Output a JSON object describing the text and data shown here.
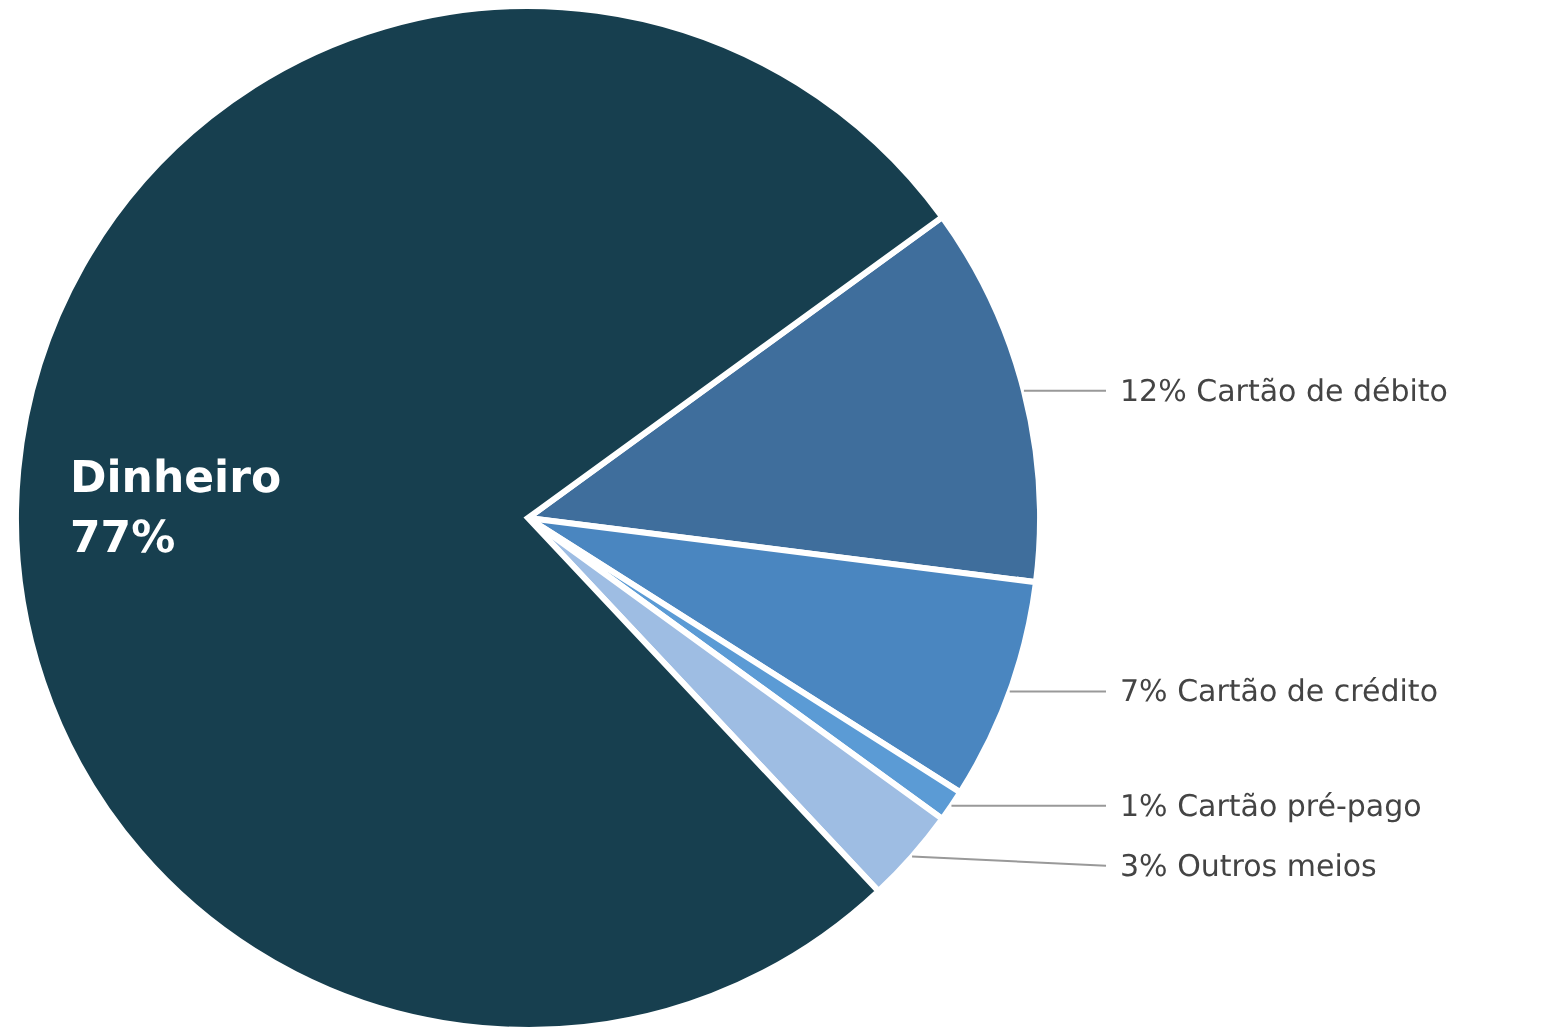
{
  "chart_data": {
    "type": "pie",
    "categories": [
      "Cartão de débito",
      "Cartão de crédito",
      "Cartão pré-pago",
      "Outros meios",
      "Dinheiro"
    ],
    "values": [
      12,
      7,
      1,
      3,
      77
    ],
    "value_labels": [
      "12%",
      "7%",
      "1%",
      "3%",
      "77%"
    ],
    "colors": [
      "#3f6e9c",
      "#4a86c0",
      "#5b9bd5",
      "#9ebde3",
      "#173f4f"
    ]
  }
}
